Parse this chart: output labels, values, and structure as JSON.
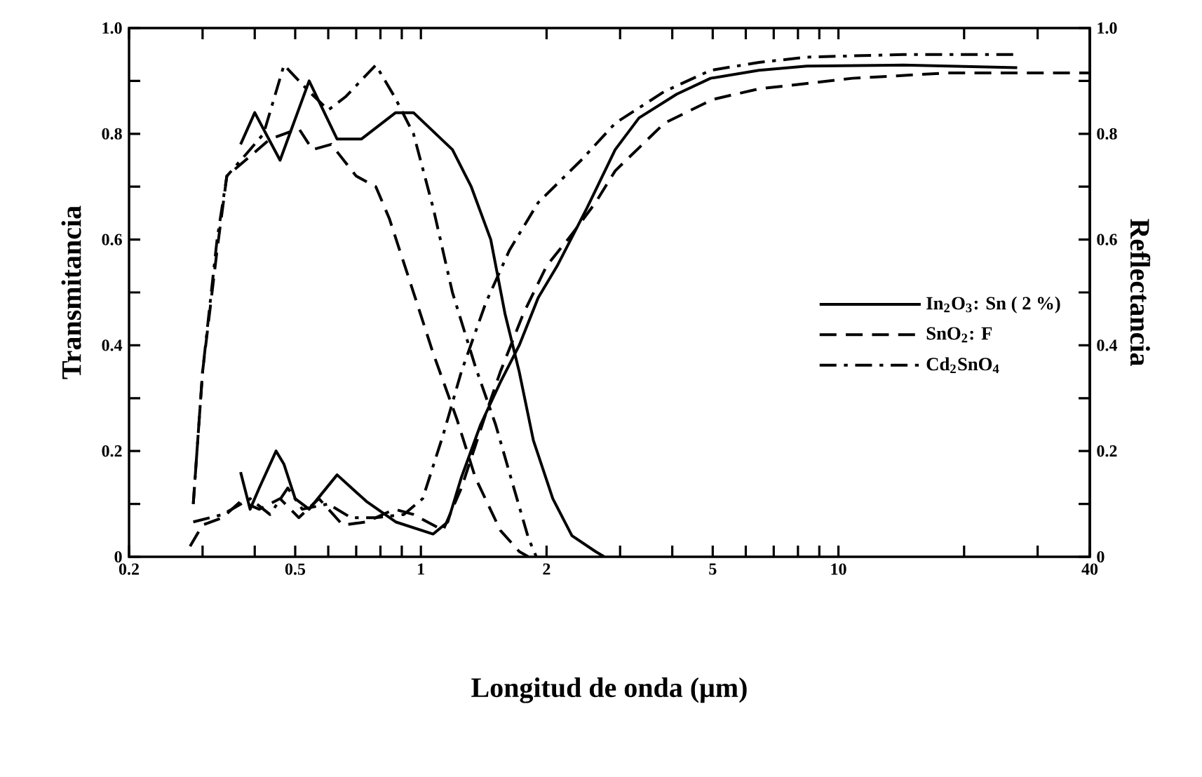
{
  "chart_data": {
    "type": "line",
    "xlabel": "Longitud de onda (μm)",
    "ylabel": "Transmitancia",
    "y2label": "Reflectancia",
    "log": "x",
    "legend": "right",
    "xlim": [
      0.2,
      40
    ],
    "xticks": [
      0.2,
      {
        "value": 0.3,
        "label": null
      },
      {
        "value": 0.4,
        "label": null
      },
      0.5,
      {
        "value": 0.6,
        "label": null
      },
      {
        "value": 0.7,
        "label": null
      },
      {
        "value": 0.8,
        "label": null
      },
      {
        "value": 0.9,
        "label": null
      },
      1,
      2,
      {
        "value": 3,
        "label": null
      },
      {
        "value": 4,
        "label": null
      },
      5,
      {
        "value": 6,
        "label": null
      },
      {
        "value": 7,
        "label": null
      },
      {
        "value": 8,
        "label": null
      },
      {
        "value": 9,
        "label": null
      },
      10,
      {
        "value": 20,
        "label": null
      },
      {
        "value": 30,
        "label": null
      },
      40
    ],
    "ylim": [
      0,
      1
    ],
    "yticks": [
      0,
      {
        "value": 0.1,
        "label": null
      },
      0.2,
      {
        "value": 0.3,
        "label": null
      },
      0.4,
      {
        "value": 0.5,
        "label": null
      },
      0.6,
      {
        "value": 0.7,
        "label": null
      },
      0.8,
      {
        "value": 0.9,
        "label": null
      },
      {
        "value": 1,
        "label": "1.0"
      }
    ],
    "y2lim": [
      0,
      1
    ],
    "y2ticks": [
      0,
      {
        "value": 0.1,
        "label": null
      },
      0.2,
      {
        "value": 0.3,
        "label": null
      },
      0.4,
      {
        "value": 0.5,
        "label": null
      },
      0.6,
      {
        "value": 0.7,
        "label": null
      },
      0.8,
      {
        "value": 0.9,
        "label": null
      },
      {
        "value": 1,
        "label": "1.0"
      }
    ],
    "series": [
      {
        "name": "In$_{2}$O$_{3}$: Sn ( 2 %)",
        "color": "#000000",
        "line_style": "solid",
        "x": [
          0.37,
          0.4,
          0.46,
          0.54,
          0.63,
          0.72,
          0.87,
          0.96,
          1.19,
          1.32,
          1.47,
          1.59,
          1.72,
          1.86,
          2.07,
          2.3,
          2.62,
          2.75
        ],
        "values": [
          0.78,
          0.84,
          0.75,
          0.9,
          0.79,
          0.79,
          0.84,
          0.84,
          0.77,
          0.7,
          0.6,
          0.46,
          0.35,
          0.22,
          0.11,
          0.04,
          0.01,
          0
        ]
      },
      {
        "name": "SnO$_{2}$: F",
        "color": "#000000",
        "line_style": "dashed",
        "x": [
          0.285,
          0.3,
          0.325,
          0.343,
          0.38,
          0.435,
          0.51,
          0.55,
          0.61,
          0.7,
          0.78,
          0.84,
          0.96,
          1.07,
          1.22,
          1.35,
          1.55,
          1.72,
          1.81
        ],
        "values": [
          0.1,
          0.35,
          0.58,
          0.72,
          0.75,
          0.79,
          0.81,
          0.77,
          0.78,
          0.72,
          0.7,
          0.64,
          0.5,
          0.385,
          0.26,
          0.15,
          0.05,
          0.01,
          0
        ]
      },
      {
        "name": "Cd$_{2}$SnO$_{4}$",
        "color": "#000000",
        "line_style": "dashdot",
        "x": [
          0.285,
          0.3,
          0.325,
          0.343,
          0.38,
          0.42,
          0.47,
          0.54,
          0.6,
          0.66,
          0.78,
          0.865,
          0.96,
          1.07,
          1.19,
          1.35,
          1.51,
          1.67,
          1.81,
          1.89
        ],
        "values": [
          0.1,
          0.35,
          0.6,
          0.72,
          0.76,
          0.8,
          0.93,
          0.88,
          0.845,
          0.87,
          0.93,
          0.87,
          0.8,
          0.66,
          0.5,
          0.36,
          0.25,
          0.13,
          0.035,
          0
        ]
      },
      {
        "color": "#000000",
        "line_style": "solid",
        "axis": "y2",
        "x": [
          0.37,
          0.39,
          0.41,
          0.45,
          0.47,
          0.5,
          0.54,
          0.63,
          0.74,
          0.87,
          1.07,
          1.16,
          1.25,
          1.39,
          1.55,
          1.72,
          1.91,
          2.12,
          2.5,
          2.92,
          3.33,
          4.1,
          4.94,
          6.45,
          8.4,
          14.3,
          26.8
        ],
        "values": [
          0.16,
          0.09,
          0.13,
          0.2,
          0.175,
          0.11,
          0.09,
          0.155,
          0.105,
          0.066,
          0.043,
          0.066,
          0.15,
          0.25,
          0.33,
          0.4,
          0.49,
          0.55,
          0.66,
          0.77,
          0.83,
          0.875,
          0.905,
          0.92,
          0.928,
          0.93,
          0.925
        ]
      },
      {
        "color": "#000000",
        "line_style": "dashed",
        "axis": "y2",
        "x": [
          0.28,
          0.3,
          0.335,
          0.37,
          0.41,
          0.46,
          0.51,
          0.57,
          0.65,
          0.74,
          0.865,
          0.96,
          1.13,
          1.25,
          1.43,
          1.55,
          1.76,
          2.0,
          2.3,
          2.62,
          2.92,
          3.83,
          5.0,
          6.45,
          10.8,
          18.3,
          40
        ],
        "values": [
          0.02,
          0.06,
          0.074,
          0.105,
          0.09,
          0.11,
          0.074,
          0.11,
          0.06,
          0.066,
          0.09,
          0.08,
          0.05,
          0.13,
          0.27,
          0.35,
          0.46,
          0.55,
          0.61,
          0.67,
          0.73,
          0.82,
          0.865,
          0.885,
          0.905,
          0.915,
          0.915
        ]
      },
      {
        "color": "#000000",
        "line_style": "dashdot",
        "axis": "y2",
        "x": [
          0.285,
          0.335,
          0.39,
          0.435,
          0.48,
          0.52,
          0.6,
          0.68,
          0.78,
          0.91,
          1.01,
          1.13,
          1.25,
          1.43,
          1.63,
          1.91,
          2.42,
          2.92,
          3.83,
          4.94,
          6.45,
          8.4,
          14.3,
          26.3
        ],
        "values": [
          0.066,
          0.08,
          0.11,
          0.08,
          0.13,
          0.09,
          0.1,
          0.074,
          0.074,
          0.08,
          0.11,
          0.23,
          0.35,
          0.48,
          0.58,
          0.67,
          0.75,
          0.82,
          0.88,
          0.92,
          0.935,
          0.945,
          0.95,
          0.95
        ]
      }
    ]
  }
}
